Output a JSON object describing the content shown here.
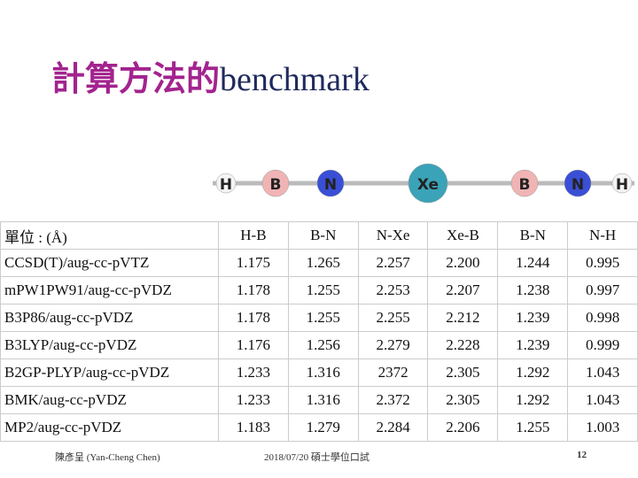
{
  "header": {
    "title_cjk": "計算方法的",
    "title_latin": "benchmark"
  },
  "molecule": {
    "atoms": [
      "H",
      "B",
      "N",
      "Xe",
      "B",
      "N",
      "H"
    ]
  },
  "table": {
    "columns": [
      "單位 : (Å)",
      "H-B",
      "B-N",
      "N-Xe",
      "Xe-B",
      "B-N",
      "N-H"
    ],
    "rows": [
      [
        "CCSD(T)/aug-cc-pVTZ",
        "1.175",
        "1.265",
        "2.257",
        "2.200",
        "1.244",
        "0.995"
      ],
      [
        "mPW1PW91/aug-cc-pVDZ",
        "1.178",
        "1.255",
        "2.253",
        "2.207",
        "1.238",
        "0.997"
      ],
      [
        "B3P86/aug-cc-pVDZ",
        "1.178",
        "1.255",
        "2.255",
        "2.212",
        "1.239",
        "0.998"
      ],
      [
        "B3LYP/aug-cc-pVDZ",
        "1.176",
        "1.256",
        "2.279",
        "2.228",
        "1.239",
        "0.999"
      ],
      [
        "B2GP-PLYP/aug-cc-pVDZ",
        "1.233",
        "1.316",
        "2372",
        "2.305",
        "1.292",
        "1.043"
      ],
      [
        "BMK/aug-cc-pVDZ",
        "1.233",
        "1.316",
        "2.372",
        "2.305",
        "1.292",
        "1.043"
      ],
      [
        "MP2/aug-cc-pVDZ",
        "1.183",
        "1.279",
        "2.284",
        "2.206",
        "1.255",
        "1.003"
      ]
    ]
  },
  "footer": {
    "author": "陳彥呈 (Yan-Cheng Chen)",
    "event": "2018/07/20 碩士學位口試",
    "page": "12"
  }
}
